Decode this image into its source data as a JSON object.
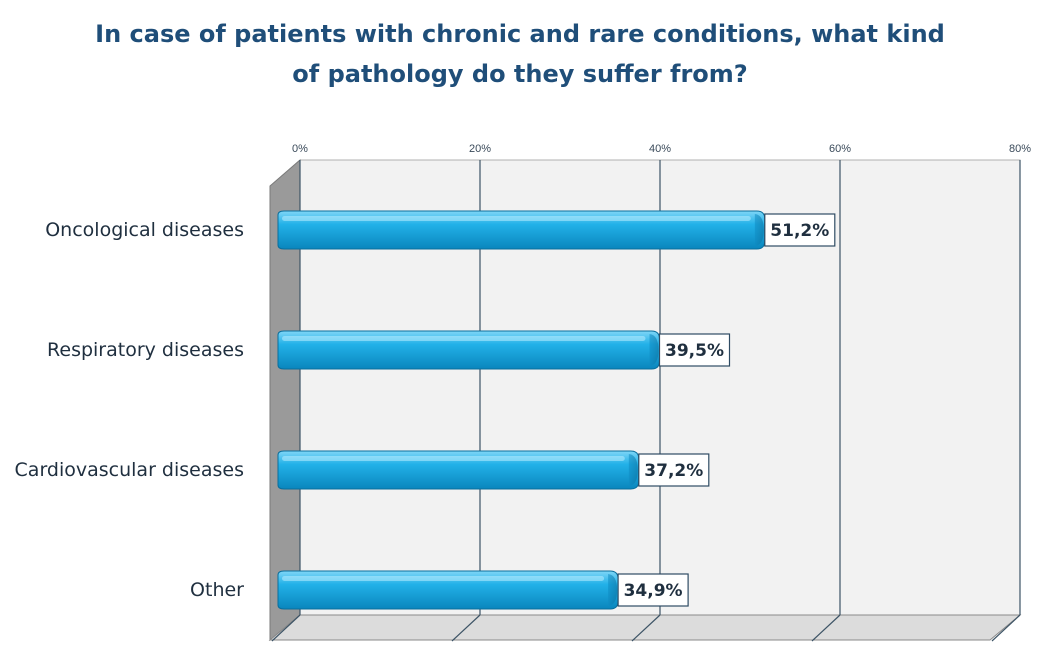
{
  "chart_data": {
    "type": "bar",
    "orientation": "horizontal",
    "title_lines": [
      "In case of patients with chronic and rare conditions, what kind",
      "of pathology do they suffer from?"
    ],
    "categories": [
      "Oncological diseases",
      "Respiratory diseases",
      "Cardiovascular diseases",
      "Other"
    ],
    "values": [
      51.2,
      39.5,
      37.2,
      34.9
    ],
    "data_labels": [
      "51,2%",
      "39,5%",
      "37,2%",
      "34,9%"
    ],
    "x_ticks": [
      0,
      20,
      40,
      60,
      80
    ],
    "x_tick_labels": [
      "0%",
      "20%",
      "40%",
      "60%",
      "80%"
    ],
    "xlim": [
      0,
      80
    ],
    "axis_position": "top",
    "grid": true,
    "legend": "none",
    "bar_color": "#1aa6df",
    "title_color": "#1f4e79"
  }
}
